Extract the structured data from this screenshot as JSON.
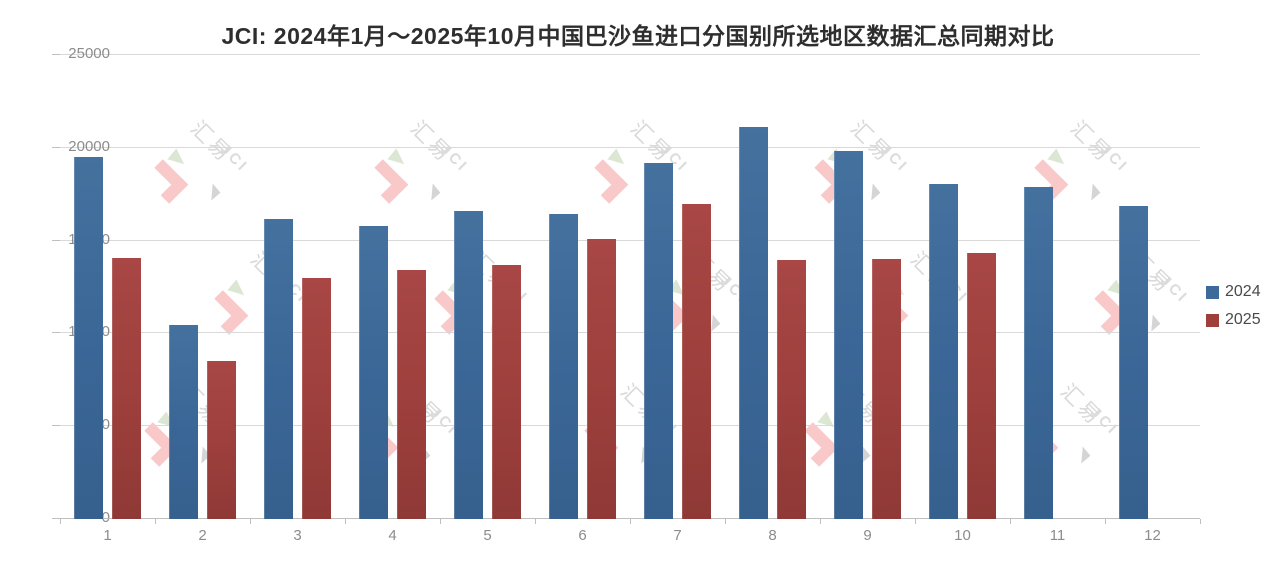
{
  "title": "JCI: 2024年1月～2025年10月中国巴沙鱼进口分国别所选地区数据汇总同期对比",
  "watermark": {
    "cn": "汇易",
    "en": "JCI"
  },
  "legend": {
    "items": [
      {
        "label": "2024",
        "color": "#3d6a9b"
      },
      {
        "label": "2025",
        "color": "#9e3f3c"
      }
    ]
  },
  "chart_data": {
    "type": "bar",
    "title": "JCI: 2024年1月～2025年10月中国巴沙鱼进口分国别所选地区数据汇总同期对比",
    "categories": [
      "1",
      "2",
      "3",
      "4",
      "5",
      "6",
      "7",
      "8",
      "9",
      "10",
      "11",
      "12"
    ],
    "series": [
      {
        "name": "2024",
        "color": "#3d6a9b",
        "values": [
          19500,
          10450,
          16150,
          15800,
          16600,
          16450,
          19200,
          21100,
          19850,
          18050,
          17900,
          16850
        ]
      },
      {
        "name": "2025",
        "color": "#9e3f3c",
        "values": [
          14050,
          8500,
          13000,
          13400,
          13700,
          15100,
          16950,
          13950,
          14000,
          14350,
          null,
          null
        ]
      }
    ],
    "xlabel": "",
    "ylabel": "",
    "ylim": [
      0,
      25000
    ],
    "yticks": [
      0,
      5000,
      10000,
      15000,
      20000,
      25000
    ],
    "grid": true,
    "legend_position": "right"
  }
}
